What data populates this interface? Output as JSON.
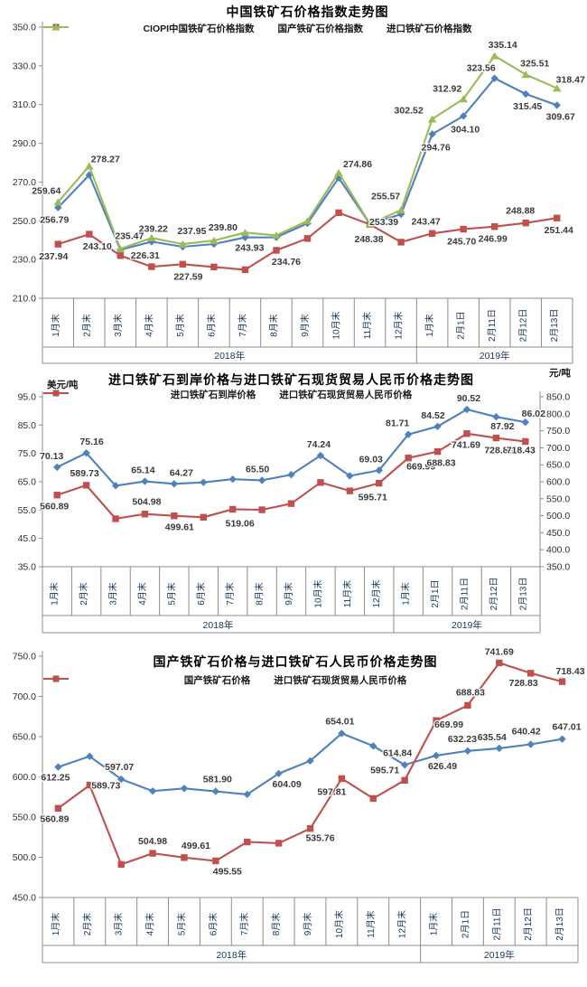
{
  "page": {
    "background": "#ffffff"
  },
  "colors": {
    "blue": "#4F81BD",
    "red": "#C0504D",
    "green": "#9BBB59",
    "axis_line": "#8c8c8c",
    "tick_text": "#303030",
    "category_text": "#17365d",
    "data_label_text": "#3a3a3a"
  },
  "categories": [
    "1月末",
    "2月末",
    "3月末",
    "4月末",
    "5月末",
    "6月末",
    "7月末",
    "8月末",
    "9月末",
    "10月末",
    "11月末",
    "12月末",
    "1月末",
    "2月1日",
    "2月11日",
    "2月12日",
    "2月13日"
  ],
  "groups": [
    {
      "label": "2018年",
      "span": 12
    },
    {
      "label": "2019年",
      "span": 5
    }
  ],
  "chart_data": [
    {
      "type": "line",
      "title": "中国铁矿石价格指数走势图",
      "ylim": [
        210.0,
        350.0
      ],
      "y_axis": {
        "min": 210,
        "max": 350,
        "step": 20
      },
      "grid": false,
      "legend_position": "top-center",
      "series": [
        {
          "name": "CIOPI中国铁矿石价格指数",
          "color": "#4F81BD",
          "marker": "diamond",
          "axis": "left",
          "values": [
            256.79,
            273.65,
            235.02,
            239.22,
            236.58,
            238.01,
            241.39,
            241.47,
            248.7,
            272.14,
            248.38,
            253.39,
            294.76,
            304.1,
            323.56,
            315.45,
            309.67
          ],
          "labels": [
            {
              "i": 0,
              "t": "256.79",
              "dx": -4,
              "dy": 17
            },
            {
              "i": 3,
              "t": "239.22",
              "dx": 2,
              "dy": -11
            },
            {
              "i": 10,
              "t": "248.38",
              "dx": -1,
              "dy": 20
            },
            {
              "i": 11,
              "t": "253.39",
              "dx": -19,
              "dy": 12
            },
            {
              "i": 12,
              "t": "294.76",
              "dx": 4,
              "dy": 18
            },
            {
              "i": 13,
              "t": "304.10",
              "dx": 2,
              "dy": 18
            },
            {
              "i": 14,
              "t": "323.56",
              "dx": -15,
              "dy": -8
            },
            {
              "i": 15,
              "t": "315.45",
              "dx": 2,
              "dy": 17
            },
            {
              "i": 16,
              "t": "309.67",
              "dx": 4,
              "dy": 16
            }
          ]
        },
        {
          "name": "国产铁矿石价格指数",
          "color": "#C0504D",
          "marker": "square",
          "axis": "left",
          "values": [
            237.94,
            243.1,
            232.05,
            226.31,
            227.59,
            226.17,
            224.74,
            234.76,
            240.88,
            254.17,
            248.14,
            238.97,
            243.47,
            245.7,
            246.99,
            248.88,
            251.44
          ],
          "labels": [
            {
              "i": 0,
              "t": "237.94",
              "dx": -5,
              "dy": 17
            },
            {
              "i": 1,
              "t": "243.10",
              "dx": 9,
              "dy": 17
            },
            {
              "i": 3,
              "t": "226.31",
              "dx": -7,
              "dy": -9
            },
            {
              "i": 4,
              "t": "227.59",
              "dx": 6,
              "dy": 17
            },
            {
              "i": 7,
              "t": "234.76",
              "dx": 11,
              "dy": 16
            },
            {
              "i": 12,
              "t": "243.47",
              "dx": -7,
              "dy": -10
            },
            {
              "i": 13,
              "t": "245.70",
              "dx": -2,
              "dy": 17
            },
            {
              "i": 14,
              "t": "246.99",
              "dx": -2,
              "dy": 17
            },
            {
              "i": 15,
              "t": "248.88",
              "dx": -6,
              "dy": -10
            },
            {
              "i": 16,
              "t": "251.44",
              "dx": 2,
              "dy": 17
            }
          ]
        },
        {
          "name": "进口铁矿石价格指数",
          "color": "#9BBB59",
          "marker": "triangle",
          "axis": "left",
          "values": [
            259.64,
            278.27,
            235.47,
            241.16,
            237.95,
            239.8,
            243.93,
            242.49,
            249.9,
            274.86,
            248.41,
            255.57,
            302.52,
            312.92,
            335.14,
            325.51,
            318.47
          ],
          "labels": [
            {
              "i": 0,
              "t": "259.64",
              "dx": -13,
              "dy": -9
            },
            {
              "i": 1,
              "t": "278.27",
              "dx": 18,
              "dy": -4
            },
            {
              "i": 2,
              "t": "235.47",
              "dx": 10,
              "dy": -11
            },
            {
              "i": 4,
              "t": "237.95",
              "dx": 10,
              "dy": -11
            },
            {
              "i": 5,
              "t": "239.80",
              "dx": 10,
              "dy": -11
            },
            {
              "i": 6,
              "t": "243.93",
              "dx": 5,
              "dy": 20
            },
            {
              "i": 9,
              "t": "274.86",
              "dx": 21,
              "dy": -6
            },
            {
              "i": 11,
              "t": "255.57",
              "dx": -17,
              "dy": -12
            },
            {
              "i": 12,
              "t": "302.52",
              "dx": -26,
              "dy": -6
            },
            {
              "i": 13,
              "t": "312.92",
              "dx": -18,
              "dy": -8
            },
            {
              "i": 14,
              "t": "335.14",
              "dx": 9,
              "dy": -9
            },
            {
              "i": 15,
              "t": "325.51",
              "dx": 10,
              "dy": -9
            },
            {
              "i": 16,
              "t": "318.47",
              "dx": 15,
              "dy": -6
            }
          ]
        }
      ]
    },
    {
      "type": "line",
      "title": "进口铁矿石到岸价格与进口铁矿石现货贸易人民币价格走势图",
      "ylim": [
        35.0,
        95.0
      ],
      "y_axis": {
        "min": 35,
        "max": 95,
        "step": 10,
        "unit": "美元/吨"
      },
      "y2_axis": {
        "min": 350,
        "max": 850,
        "step": 50,
        "unit": "元/吨"
      },
      "grid": false,
      "legend_position": "top-center",
      "series": [
        {
          "name": "进口铁矿石到岸价格",
          "color": "#4F81BD",
          "marker": "diamond",
          "axis": "left",
          "values": [
            70.13,
            75.16,
            63.61,
            65.14,
            64.27,
            64.77,
            65.89,
            65.5,
            67.5,
            74.24,
            67.09,
            69.03,
            81.71,
            84.52,
            90.52,
            87.92,
            86.02
          ],
          "labels": [
            {
              "i": 0,
              "t": "70.13",
              "dx": -6,
              "dy": -9
            },
            {
              "i": 1,
              "t": "75.16",
              "dx": 6,
              "dy": -9
            },
            {
              "i": 3,
              "t": "65.14",
              "dx": -2,
              "dy": -9
            },
            {
              "i": 4,
              "t": "64.27",
              "dx": 8,
              "dy": -9
            },
            {
              "i": 7,
              "t": "65.50",
              "dx": -5,
              "dy": -9
            },
            {
              "i": 9,
              "t": "74.24",
              "dx": -2,
              "dy": -9
            },
            {
              "i": 11,
              "t": "69.03",
              "dx": -9,
              "dy": -9
            },
            {
              "i": 12,
              "t": "81.71",
              "dx": -12,
              "dy": -9
            },
            {
              "i": 13,
              "t": "84.52",
              "dx": -5,
              "dy": -9
            },
            {
              "i": 14,
              "t": "90.52",
              "dx": 2,
              "dy": -9
            },
            {
              "i": 15,
              "t": "87.92",
              "dx": 7,
              "dy": 14
            },
            {
              "i": 16,
              "t": "86.02",
              "dx": 9,
              "dy": -6
            }
          ]
        },
        {
          "name": "进口铁矿石现货贸易人民币价格",
          "color": "#C0504D",
          "marker": "square",
          "axis": "right",
          "values": [
            560.89,
            589.73,
            491.1,
            504.98,
            499.61,
            495.55,
            519.06,
            517.5,
            535.76,
            597.81,
            573.1,
            595.71,
            669.99,
            688.83,
            741.69,
            728.83,
            718.43
          ],
          "labels": [
            {
              "i": 0,
              "t": "560.89",
              "dx": -3,
              "dy": 16
            },
            {
              "i": 1,
              "t": "589.73",
              "dx": -2,
              "dy": -10
            },
            {
              "i": 3,
              "t": "504.98",
              "dx": 2,
              "dy": -10
            },
            {
              "i": 4,
              "t": "499.61",
              "dx": 6,
              "dy": 16
            },
            {
              "i": 6,
              "t": "519.06",
              "dx": 8,
              "dy": 19
            },
            {
              "i": 11,
              "t": "595.71",
              "dx": -7,
              "dy": 19
            },
            {
              "i": 12,
              "t": "669.99",
              "dx": 14,
              "dy": 13
            },
            {
              "i": 13,
              "t": "688.83",
              "dx": 4,
              "dy": 16
            },
            {
              "i": 14,
              "t": "741.69",
              "dx": -1,
              "dy": 16
            },
            {
              "i": 15,
              "t": "728.83",
              "dx": 3,
              "dy": 17
            },
            {
              "i": 16,
              "t": "718.43",
              "dx": -5,
              "dy": 13
            }
          ]
        }
      ]
    },
    {
      "type": "line",
      "title": "国产铁矿石价格与进口铁矿石人民币价格走势图",
      "ylim": [
        450.0,
        750.0
      ],
      "y_axis": {
        "min": 450,
        "max": 750,
        "step": 50
      },
      "grid": false,
      "legend_position": "top-center",
      "series": [
        {
          "name": "国产铁矿石价格",
          "color": "#4F81BD",
          "marker": "diamond",
          "axis": "left",
          "values": [
            612.25,
            625.52,
            597.07,
            582.32,
            585.61,
            581.9,
            578.25,
            604.09,
            619.86,
            654.01,
            638.4,
            614.84,
            626.49,
            632.23,
            635.54,
            640.42,
            647.01
          ],
          "labels": [
            {
              "i": 0,
              "t": "612.25",
              "dx": -3,
              "dy": 15
            },
            {
              "i": 2,
              "t": "597.07",
              "dx": -2,
              "dy": -10
            },
            {
              "i": 5,
              "t": "581.90",
              "dx": 2,
              "dy": -10
            },
            {
              "i": 7,
              "t": "604.09",
              "dx": 9,
              "dy": 15
            },
            {
              "i": 9,
              "t": "654.01",
              "dx": -2,
              "dy": -10
            },
            {
              "i": 11,
              "t": "614.84",
              "dx": -8,
              "dy": -10
            },
            {
              "i": 12,
              "t": "626.49",
              "dx": 7,
              "dy": 15
            },
            {
              "i": 13,
              "t": "632.23",
              "dx": -6,
              "dy": -10
            },
            {
              "i": 14,
              "t": "635.54",
              "dx": -8,
              "dy": -9
            },
            {
              "i": 15,
              "t": "640.42",
              "dx": -5,
              "dy": -11
            },
            {
              "i": 16,
              "t": "647.01",
              "dx": 5,
              "dy": -10
            }
          ]
        },
        {
          "name": "进口铁矿石现货贸易人民币价格",
          "color": "#C0504D",
          "marker": "square",
          "axis": "left",
          "values": [
            560.89,
            589.73,
            491.1,
            504.98,
            499.61,
            495.55,
            519.06,
            517.5,
            535.76,
            597.81,
            573.1,
            595.71,
            669.99,
            688.83,
            741.69,
            728.83,
            718.43
          ],
          "labels": [
            {
              "i": 0,
              "t": "560.89",
              "dx": -4,
              "dy": 15
            },
            {
              "i": 1,
              "t": "589.73",
              "dx": 18,
              "dy": 4
            },
            {
              "i": 3,
              "t": "504.98",
              "dx": 0,
              "dy": -10
            },
            {
              "i": 4,
              "t": "499.61",
              "dx": 13,
              "dy": -10
            },
            {
              "i": 5,
              "t": "495.55",
              "dx": 13,
              "dy": 15
            },
            {
              "i": 8,
              "t": "535.76",
              "dx": 11,
              "dy": 14
            },
            {
              "i": 9,
              "t": "597.81",
              "dx": -11,
              "dy": 18
            },
            {
              "i": 11,
              "t": "595.71",
              "dx": -22,
              "dy": -8
            },
            {
              "i": 12,
              "t": "669.99",
              "dx": 14,
              "dy": 8
            },
            {
              "i": 13,
              "t": "688.83",
              "dx": 3,
              "dy": -11
            },
            {
              "i": 14,
              "t": "741.69",
              "dx": 0,
              "dy": -9
            },
            {
              "i": 15,
              "t": "728.83",
              "dx": -8,
              "dy": 14
            },
            {
              "i": 16,
              "t": "718.43",
              "dx": 9,
              "dy": -8
            }
          ]
        }
      ]
    }
  ]
}
